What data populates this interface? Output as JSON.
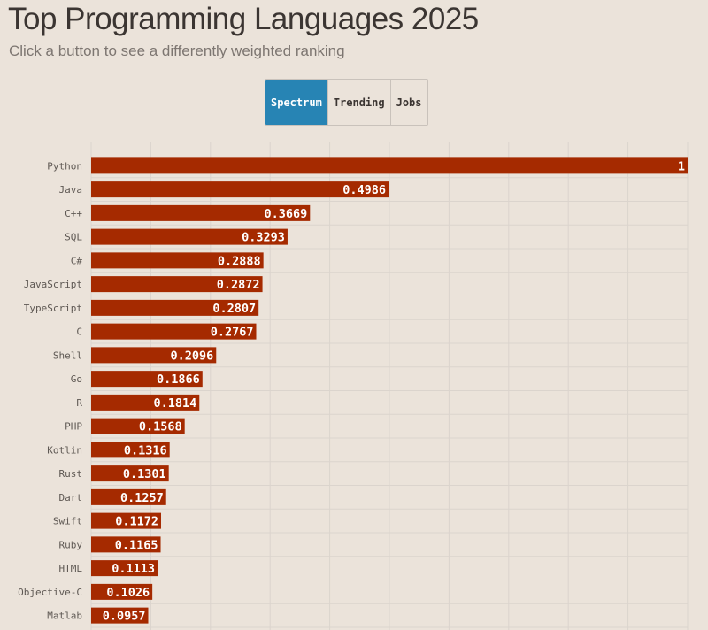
{
  "header": {
    "title": "Top Programming Languages 2025",
    "subtitle": "Click a button to see a differently weighted ranking"
  },
  "buttons": [
    {
      "label": "Spectrum",
      "active": true
    },
    {
      "label": "Trending",
      "active": false
    },
    {
      "label": "Jobs",
      "active": false
    }
  ],
  "colors": {
    "bar": "#a52a00",
    "active_button": "#2784b4",
    "background": "#ebe3da",
    "grid": "#dbd4cd"
  },
  "chart_data": {
    "type": "bar",
    "orientation": "horizontal",
    "xlim": [
      0,
      1
    ],
    "grid": true,
    "categories": [
      "Python",
      "Java",
      "C++",
      "SQL",
      "C#",
      "JavaScript",
      "TypeScript",
      "C",
      "Shell",
      "Go",
      "R",
      "PHP",
      "Kotlin",
      "Rust",
      "Dart",
      "Swift",
      "Ruby",
      "HTML",
      "Objective-C",
      "Matlab"
    ],
    "values": [
      1,
      0.4986,
      0.3669,
      0.3293,
      0.2888,
      0.2872,
      0.2807,
      0.2767,
      0.2096,
      0.1866,
      0.1814,
      0.1568,
      0.1316,
      0.1301,
      0.1257,
      0.1172,
      0.1165,
      0.1113,
      0.1026,
      0.0957
    ],
    "data_labels": [
      "1",
      "0.4986",
      "0.3669",
      "0.3293",
      "0.2888",
      "0.2872",
      "0.2807",
      "0.2767",
      "0.2096",
      "0.1866",
      "0.1814",
      "0.1568",
      "0.1316",
      "0.1301",
      "0.1257",
      "0.1172",
      "0.1165",
      "0.1113",
      "0.1026",
      "0.0957"
    ]
  }
}
